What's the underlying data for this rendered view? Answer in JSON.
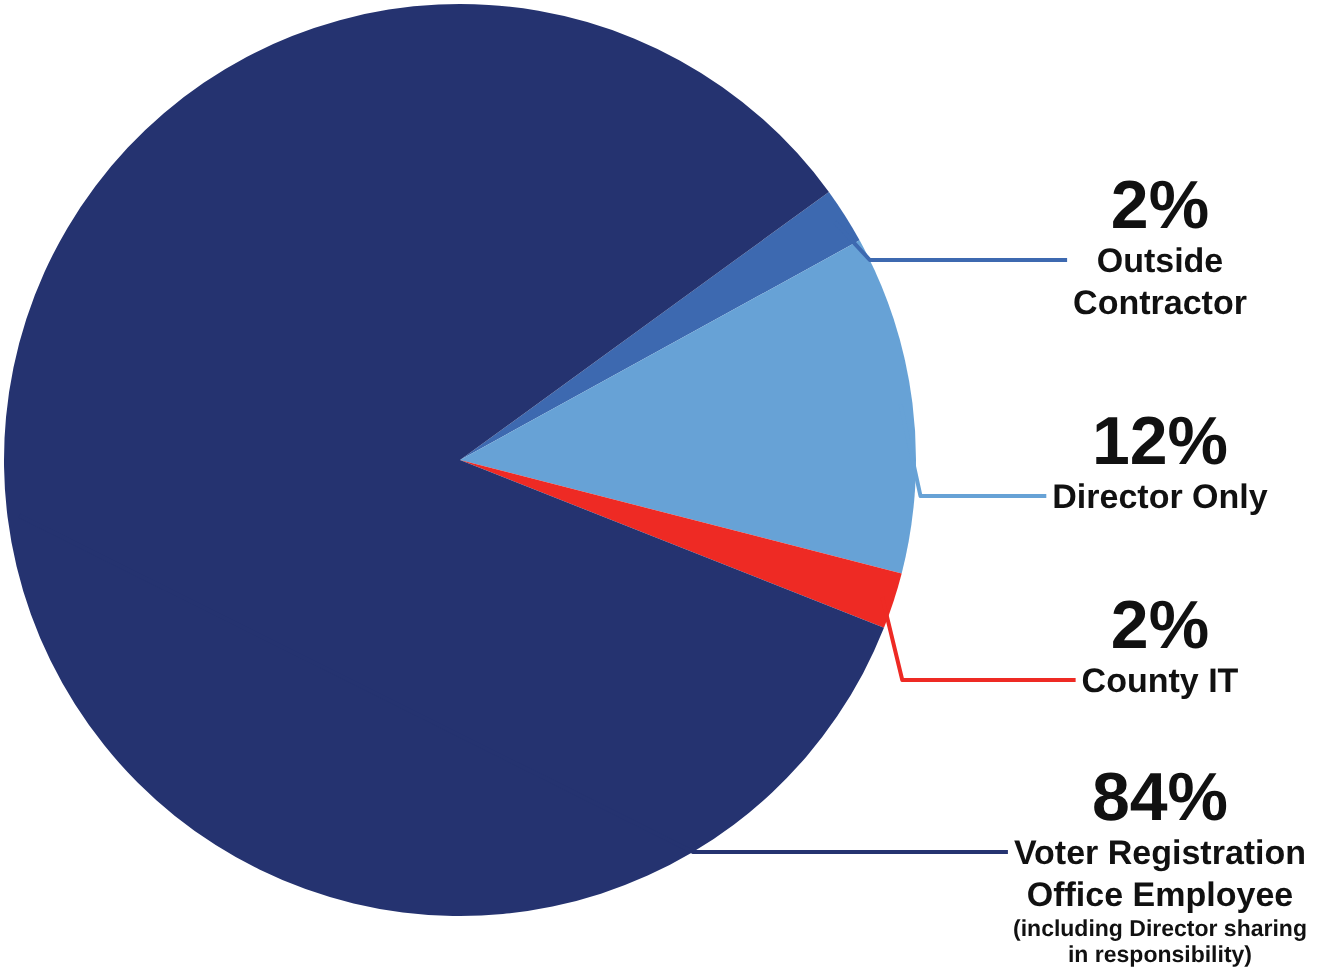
{
  "chart_data": {
    "type": "pie",
    "categories": [
      "Outside Contractor",
      "Director Only",
      "County IT",
      "Voter Registration Office Employee"
    ],
    "values": [
      2,
      12,
      2,
      84
    ],
    "colors": [
      "#3d69b0",
      "#67a2d6",
      "#ee2a24",
      "#253370"
    ],
    "value_labels": [
      "2%",
      "12%",
      "2%",
      "84%"
    ],
    "annotations": [
      "(including Director sharing in responsibility)"
    ]
  }
}
